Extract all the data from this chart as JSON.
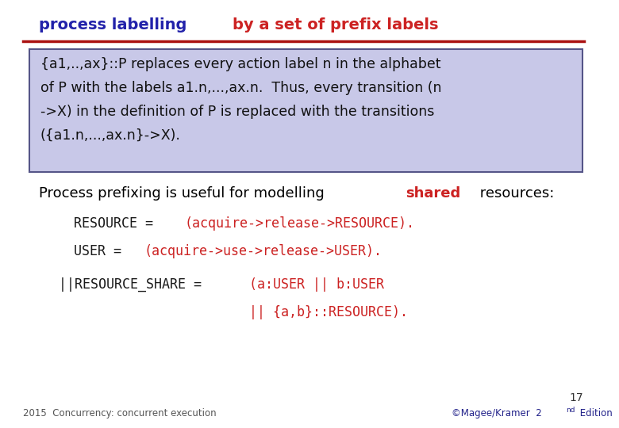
{
  "title_parts": [
    {
      "text": "process labelling ",
      "color": "#2222aa",
      "bold": true
    },
    {
      "text": "by a set of prefix labels",
      "color": "#cc2222",
      "bold": true
    }
  ],
  "box_text": "{a1,..,ax}::P replaces every action label n in the alphabet\nof P with the labels a1.n,...,ax.n.  Thus, every transition (n\n->X) in the definition of P is replaced with the transitions\n({a1.n,...,ax.n}->X).",
  "box_bg": "#c8c8e8",
  "box_border": "#555588",
  "line_color": "#aa1111",
  "prefixing_text_parts": [
    {
      "text": "Process prefixing is useful for modelling ",
      "color": "#000000",
      "bold": false
    },
    {
      "text": "shared",
      "color": "#cc2222",
      "bold": true
    },
    {
      "text": " resources:",
      "color": "#000000",
      "bold": false
    }
  ],
  "code_lines": [
    {
      "parts": [
        {
          "text": "RESOURCE = ",
          "color": "#1a1a1a",
          "mono": true
        },
        {
          "text": "(acquire->release->RESOURCE).",
          "color": "#cc2222",
          "mono": true
        }
      ]
    },
    {
      "parts": [
        {
          "text": "USER = ",
          "color": "#1a1a1a",
          "mono": true
        },
        {
          "text": "(acquire->use->release->USER).",
          "color": "#cc2222",
          "mono": true
        }
      ]
    }
  ],
  "share_line1_parts": [
    {
      "text": "||RESOURCE_SHARE = ",
      "color": "#1a1a1a",
      "mono": true
    },
    {
      "text": "(",
      "color": "#cc2222",
      "mono": true
    },
    {
      "text": "a",
      "color": "#cc2222",
      "mono": true
    },
    {
      "text": ":USER || ",
      "color": "#cc2222",
      "mono": true
    },
    {
      "text": "b",
      "color": "#cc2222",
      "mono": true
    },
    {
      "text": ":USER",
      "color": "#cc2222",
      "mono": true
    }
  ],
  "share_line2_parts": [
    {
      "text": "|| {",
      "color": "#cc2222",
      "mono": true
    },
    {
      "text": "a",
      "color": "#cc2222",
      "mono": true
    },
    {
      "text": ",",
      "color": "#cc2222",
      "mono": true
    },
    {
      "text": "b",
      "color": "#cc2222",
      "mono": true
    },
    {
      "text": "}::RESOURCE).",
      "color": "#cc2222",
      "mono": true
    }
  ],
  "footer_left": "2015  Concurrency: concurrent execution",
  "footer_right_parts": [
    {
      "text": "©Magee/Kramer  ",
      "color": "#22228a"
    },
    {
      "text": "2",
      "color": "#22228a",
      "superscript": true
    },
    {
      "text": "nd",
      "color": "#22228a",
      "superscript": true
    },
    {
      "text": " Edition",
      "color": "#22228a"
    }
  ],
  "page_number": "17",
  "bg_color": "#ffffff"
}
